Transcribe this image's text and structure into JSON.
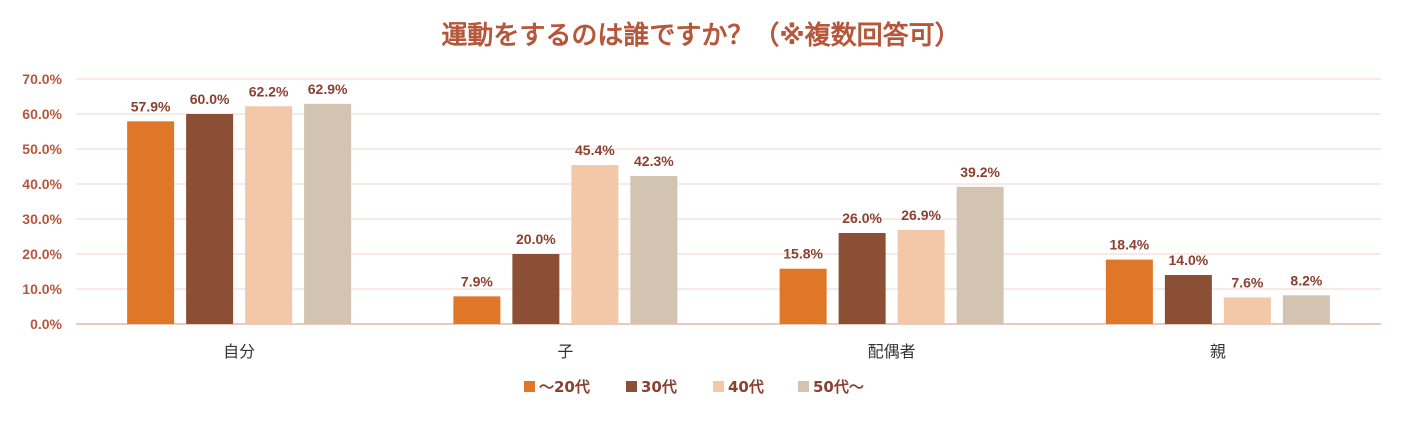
{
  "chart_data": {
    "type": "bar",
    "title": "運動をするのは誰ですか？（※複数回答可）",
    "categories": [
      "自分",
      "子",
      "配偶者",
      "親"
    ],
    "series": [
      {
        "name": "～20代",
        "color": "#e07728",
        "values": [
          57.9,
          7.9,
          15.8,
          18.4
        ],
        "labels": [
          "57.9%",
          "7.9%",
          "15.8%",
          "18.4%"
        ]
      },
      {
        "name": "30代",
        "color": "#8b4f35",
        "values": [
          60.0,
          20.0,
          26.0,
          14.0
        ],
        "labels": [
          "60.0%",
          "20.0%",
          "26.0%",
          "14.0%"
        ]
      },
      {
        "name": "40代",
        "color": "#f2c8a8",
        "values": [
          62.2,
          45.4,
          26.9,
          7.6
        ],
        "labels": [
          "62.2%",
          "45.4%",
          "26.9%",
          "7.6%"
        ]
      },
      {
        "name": "50代～",
        "color": "#d3c3b1",
        "values": [
          62.9,
          42.3,
          39.2,
          8.2
        ],
        "labels": [
          "62.9%",
          "42.3%",
          "39.2%",
          "8.2%"
        ]
      }
    ],
    "ylim": [
      0,
      70
    ],
    "yticks": [
      0,
      10,
      20,
      30,
      40,
      50,
      60,
      70
    ],
    "ytick_labels": [
      "0.0%",
      "10.0%",
      "20.0%",
      "30.0%",
      "40.0%",
      "50.0%",
      "60.0%",
      "70.0%"
    ],
    "grid": true,
    "legend_position": "bottom",
    "colors": {
      "title": "#b5573b",
      "tick_text": "#b5573b",
      "label_text": "#8b4030",
      "category_text": "#333333",
      "legend_text": "#8b4030",
      "gridline": "#f0d6cc",
      "axis": "#e3b8a8"
    }
  }
}
